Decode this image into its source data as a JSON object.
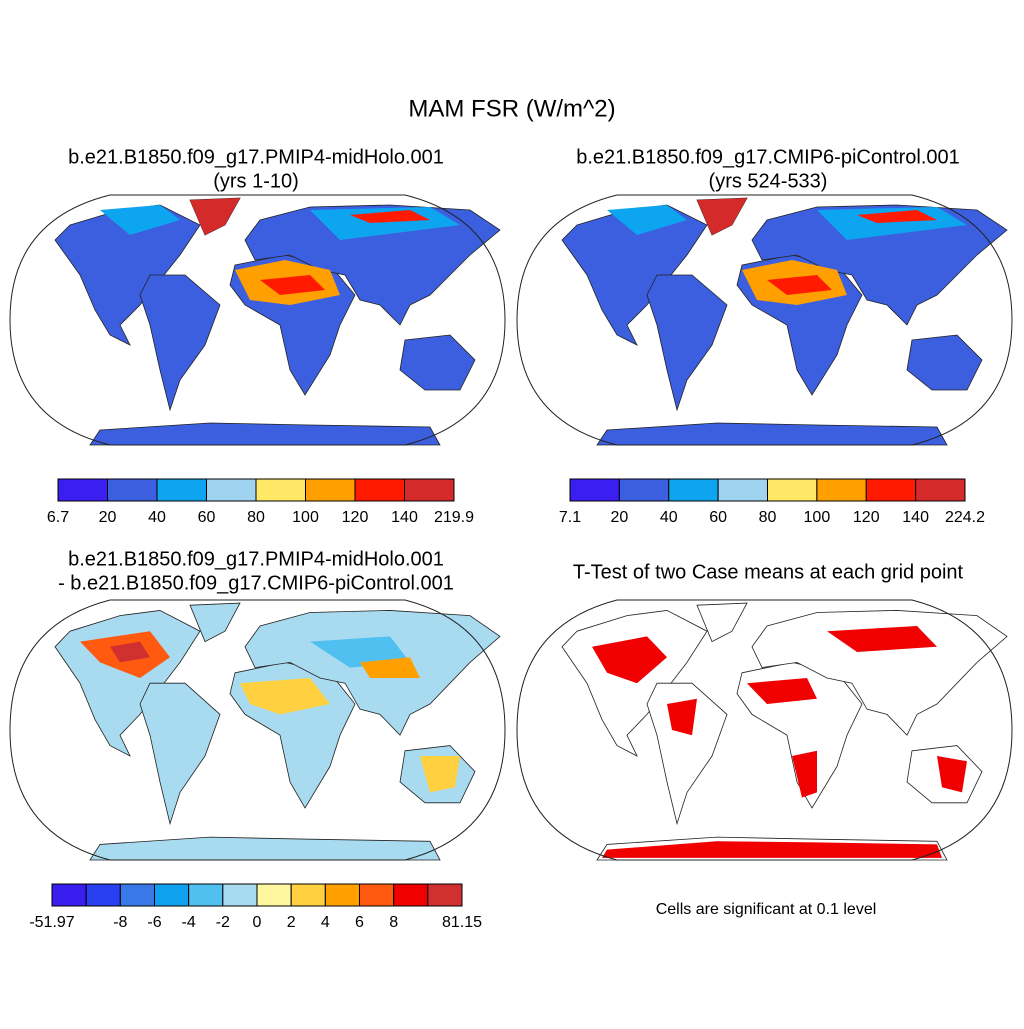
{
  "title": "MAM FSR (W/m^2)",
  "panels": [
    {
      "title": [
        "b.e21.B1850.f09_g17.PMIP4-midHolo.001",
        "(yrs 1-10)"
      ],
      "colorbar": {
        "colors": [
          "#3b1ef0",
          "#3c5fe0",
          "#0ea5f0",
          "#9fd3f0",
          "#ffe866",
          "#ff9f00",
          "#ff1a00",
          "#d42a2a"
        ],
        "labels": [
          "6.7",
          "20",
          "40",
          "60",
          "80",
          "100",
          "120",
          "140",
          "219.9"
        ]
      }
    },
    {
      "title": [
        "b.e21.B1850.f09_g17.CMIP6-piControl.001",
        "(yrs 524-533)"
      ],
      "colorbar": {
        "colors": [
          "#3b1ef0",
          "#3c5fe0",
          "#0ea5f0",
          "#9fd3f0",
          "#ffe866",
          "#ff9f00",
          "#ff1a00",
          "#d42a2a"
        ],
        "labels": [
          "7.1",
          "20",
          "40",
          "60",
          "80",
          "100",
          "120",
          "140",
          "224.2"
        ]
      }
    },
    {
      "title": [
        "b.e21.B1850.f09_g17.PMIP4-midHolo.001",
        "- b.e21.B1850.f09_g17.CMIP6-piControl.001"
      ],
      "colorbar": {
        "colors": [
          "#3a1ef0",
          "#2840f0",
          "#3a78e8",
          "#10a0f0",
          "#50c0f0",
          "#a8daf0",
          "#fff7a0",
          "#ffd040",
          "#ffa000",
          "#ff5a10",
          "#f00000",
          "#d03030"
        ],
        "labels": [
          "-51.97",
          null,
          "-8",
          "-6",
          "-4",
          "-2",
          "0",
          "2",
          "4",
          "6",
          "8",
          null,
          "81.15"
        ]
      }
    },
    {
      "title": [
        "T-Test of two Case means at each grid point"
      ],
      "note": "Cells are significant at 0.1 level"
    }
  ]
}
